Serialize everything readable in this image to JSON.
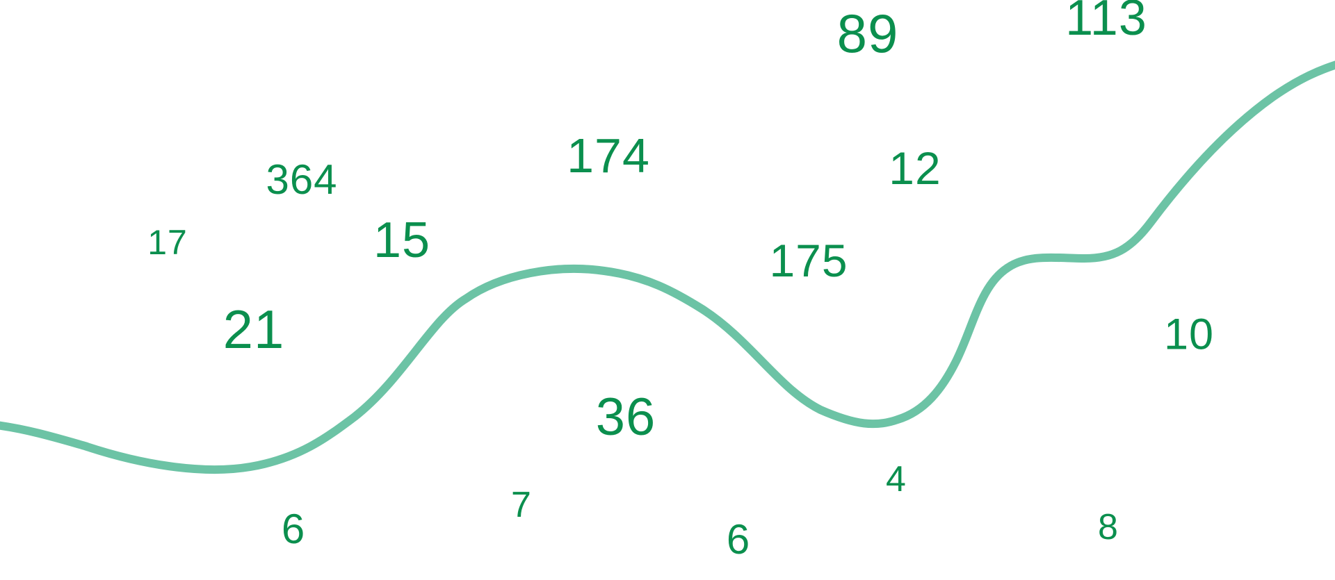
{
  "colors": {
    "numbers": "#0b8f4e",
    "curve": "#6cc3a5"
  },
  "numbers": [
    "89",
    "113",
    "174",
    "364",
    "12",
    "17",
    "15",
    "175",
    "21",
    "10",
    "36",
    "4",
    "7",
    "6",
    "6",
    "8"
  ]
}
